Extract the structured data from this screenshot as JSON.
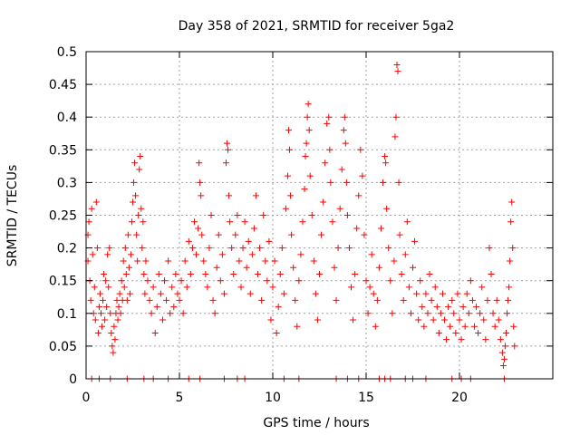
{
  "chart_data": {
    "type": "scatter",
    "title": "Day 358 of 2021, SRMTID for receiver 5ga2",
    "xlabel": "GPS time / hours",
    "ylabel": "SRMTID / TECUs",
    "xlim": [
      0,
      25
    ],
    "ylim": [
      0,
      0.5
    ],
    "xticks": [
      0,
      5,
      10,
      15,
      20
    ],
    "yticks": [
      0,
      0.05,
      0.1,
      0.15,
      0.2,
      0.25,
      0.3,
      0.35,
      0.4,
      0.45,
      0.5
    ],
    "ytick_labels": [
      "0",
      "0.05",
      "0.1",
      "0.15",
      "0.2",
      "0.25",
      "0.3",
      "0.35",
      "0.4",
      "0.45",
      "0.5"
    ],
    "xtick_labels": [
      "0",
      "5",
      "10",
      "15",
      "20"
    ],
    "grid": true,
    "marker": "+",
    "series": [
      {
        "name": "SRMTID",
        "color": "#ff0000",
        "points": [
          [
            0.1,
            0.18
          ],
          [
            0.1,
            0.22
          ],
          [
            0.15,
            0.24
          ],
          [
            0.2,
            0.15
          ],
          [
            0.25,
            0.12
          ],
          [
            0.3,
            0.26
          ],
          [
            0.35,
            0.19
          ],
          [
            0.4,
            0.1
          ],
          [
            0.45,
            0.14
          ],
          [
            0.5,
            0.09
          ],
          [
            0.55,
            0.27
          ],
          [
            0.6,
            0.2
          ],
          [
            0.65,
            0.07
          ],
          [
            0.7,
            0.11
          ],
          [
            0.75,
            0.13
          ],
          [
            0.8,
            0.1
          ],
          [
            0.85,
            0.08
          ],
          [
            0.9,
            0.12
          ],
          [
            0.95,
            0.16
          ],
          [
            1.0,
            0.09
          ],
          [
            1.05,
            0.15
          ],
          [
            1.1,
            0.11
          ],
          [
            1.15,
            0.19
          ],
          [
            1.2,
            0.14
          ],
          [
            1.25,
            0.2
          ],
          [
            1.3,
            0.1
          ],
          [
            1.35,
            0.07
          ],
          [
            1.4,
            0.05
          ],
          [
            1.45,
            0.04
          ],
          [
            1.5,
            0.08
          ],
          [
            1.55,
            0.06
          ],
          [
            1.6,
            0.1
          ],
          [
            1.65,
            0.12
          ],
          [
            1.7,
            0.09
          ],
          [
            1.75,
            0.11
          ],
          [
            1.8,
            0.13
          ],
          [
            1.85,
            0.1
          ],
          [
            1.9,
            0.15
          ],
          [
            1.95,
            0.12
          ],
          [
            2.0,
            0.18
          ],
          [
            2.05,
            0.14
          ],
          [
            2.1,
            0.2
          ],
          [
            2.15,
            0.16
          ],
          [
            2.2,
            0.12
          ],
          [
            2.25,
            0.22
          ],
          [
            2.3,
            0.17
          ],
          [
            2.35,
            0.13
          ],
          [
            2.4,
            0.19
          ],
          [
            2.45,
            0.24
          ],
          [
            2.5,
            0.27
          ],
          [
            2.55,
            0.3
          ],
          [
            2.6,
            0.33
          ],
          [
            2.65,
            0.28
          ],
          [
            2.7,
            0.22
          ],
          [
            2.75,
            0.18
          ],
          [
            2.8,
            0.25
          ],
          [
            2.85,
            0.32
          ],
          [
            2.9,
            0.34
          ],
          [
            2.95,
            0.26
          ],
          [
            3.0,
            0.2
          ],
          [
            3.05,
            0.24
          ],
          [
            3.1,
            0.16
          ],
          [
            3.15,
            0.13
          ],
          [
            3.2,
            0.18
          ],
          [
            3.3,
            0.15
          ],
          [
            3.4,
            0.12
          ],
          [
            3.5,
            0.1
          ],
          [
            3.6,
            0.14
          ],
          [
            3.7,
            0.07
          ],
          [
            3.8,
            0.11
          ],
          [
            3.9,
            0.16
          ],
          [
            4.0,
            0.13
          ],
          [
            4.1,
            0.09
          ],
          [
            4.2,
            0.15
          ],
          [
            4.3,
            0.12
          ],
          [
            4.4,
            0.18
          ],
          [
            4.5,
            0.1
          ],
          [
            4.6,
            0.14
          ],
          [
            4.7,
            0.11
          ],
          [
            4.8,
            0.16
          ],
          [
            4.9,
            0.13
          ],
          [
            5.0,
            0.12
          ],
          [
            5.1,
            0.15
          ],
          [
            5.2,
            0.1
          ],
          [
            5.3,
            0.18
          ],
          [
            5.4,
            0.14
          ],
          [
            5.5,
            0.21
          ],
          [
            5.6,
            0.16
          ],
          [
            5.7,
            0.2
          ],
          [
            5.8,
            0.24
          ],
          [
            5.9,
            0.19
          ],
          [
            6.0,
            0.23
          ],
          [
            6.05,
            0.33
          ],
          [
            6.1,
            0.3
          ],
          [
            6.15,
            0.28
          ],
          [
            6.2,
            0.22
          ],
          [
            6.3,
            0.18
          ],
          [
            6.4,
            0.16
          ],
          [
            6.5,
            0.14
          ],
          [
            6.6,
            0.2
          ],
          [
            6.7,
            0.25
          ],
          [
            6.8,
            0.12
          ],
          [
            6.9,
            0.1
          ],
          [
            7.0,
            0.17
          ],
          [
            7.1,
            0.22
          ],
          [
            7.2,
            0.15
          ],
          [
            7.3,
            0.19
          ],
          [
            7.4,
            0.13
          ],
          [
            7.5,
            0.33
          ],
          [
            7.55,
            0.36
          ],
          [
            7.6,
            0.35
          ],
          [
            7.65,
            0.28
          ],
          [
            7.7,
            0.24
          ],
          [
            7.8,
            0.2
          ],
          [
            7.9,
            0.16
          ],
          [
            8.0,
            0.22
          ],
          [
            8.1,
            0.25
          ],
          [
            8.2,
            0.18
          ],
          [
            8.3,
            0.14
          ],
          [
            8.4,
            0.2
          ],
          [
            8.5,
            0.24
          ],
          [
            8.6,
            0.17
          ],
          [
            8.7,
            0.21
          ],
          [
            8.8,
            0.13
          ],
          [
            8.9,
            0.19
          ],
          [
            9.0,
            0.23
          ],
          [
            9.1,
            0.28
          ],
          [
            9.2,
            0.16
          ],
          [
            9.3,
            0.2
          ],
          [
            9.4,
            0.12
          ],
          [
            9.5,
            0.25
          ],
          [
            9.6,
            0.18
          ],
          [
            9.7,
            0.15
          ],
          [
            9.8,
            0.21
          ],
          [
            9.9,
            0.09
          ],
          [
            10.0,
            0.14
          ],
          [
            10.1,
            0.18
          ],
          [
            10.2,
            0.07
          ],
          [
            10.3,
            0.11
          ],
          [
            10.4,
            0.16
          ],
          [
            10.5,
            0.2
          ],
          [
            10.6,
            0.13
          ],
          [
            10.7,
            0.26
          ],
          [
            10.8,
            0.31
          ],
          [
            10.85,
            0.38
          ],
          [
            10.9,
            0.35
          ],
          [
            10.95,
            0.28
          ],
          [
            11.0,
            0.22
          ],
          [
            11.1,
            0.17
          ],
          [
            11.2,
            0.12
          ],
          [
            11.3,
            0.08
          ],
          [
            11.4,
            0.15
          ],
          [
            11.5,
            0.19
          ],
          [
            11.6,
            0.24
          ],
          [
            11.7,
            0.29
          ],
          [
            11.75,
            0.34
          ],
          [
            11.8,
            0.36
          ],
          [
            11.85,
            0.4
          ],
          [
            11.9,
            0.42
          ],
          [
            11.95,
            0.38
          ],
          [
            12.0,
            0.31
          ],
          [
            12.1,
            0.25
          ],
          [
            12.2,
            0.18
          ],
          [
            12.3,
            0.13
          ],
          [
            12.4,
            0.09
          ],
          [
            12.5,
            0.16
          ],
          [
            12.6,
            0.22
          ],
          [
            12.7,
            0.27
          ],
          [
            12.8,
            0.33
          ],
          [
            12.9,
            0.39
          ],
          [
            13.0,
            0.4
          ],
          [
            13.05,
            0.35
          ],
          [
            13.1,
            0.3
          ],
          [
            13.2,
            0.24
          ],
          [
            13.3,
            0.17
          ],
          [
            13.4,
            0.12
          ],
          [
            13.5,
            0.2
          ],
          [
            13.6,
            0.26
          ],
          [
            13.7,
            0.32
          ],
          [
            13.8,
            0.38
          ],
          [
            13.85,
            0.4
          ],
          [
            13.9,
            0.36
          ],
          [
            13.95,
            0.3
          ],
          [
            14.0,
            0.25
          ],
          [
            14.1,
            0.2
          ],
          [
            14.2,
            0.14
          ],
          [
            14.3,
            0.09
          ],
          [
            14.4,
            0.16
          ],
          [
            14.5,
            0.23
          ],
          [
            14.6,
            0.28
          ],
          [
            14.7,
            0.35
          ],
          [
            14.8,
            0.31
          ],
          [
            14.9,
            0.22
          ],
          [
            15.0,
            0.15
          ],
          [
            15.1,
            0.1
          ],
          [
            15.2,
            0.14
          ],
          [
            15.3,
            0.19
          ],
          [
            15.4,
            0.13
          ],
          [
            15.5,
            0.08
          ],
          [
            15.6,
            0.12
          ],
          [
            15.7,
            0.17
          ],
          [
            15.8,
            0.23
          ],
          [
            15.9,
            0.3
          ],
          [
            16.0,
            0.34
          ],
          [
            16.05,
            0.33
          ],
          [
            16.1,
            0.26
          ],
          [
            16.2,
            0.2
          ],
          [
            16.3,
            0.15
          ],
          [
            16.4,
            0.1
          ],
          [
            16.5,
            0.18
          ],
          [
            16.55,
            0.37
          ],
          [
            16.6,
            0.4
          ],
          [
            16.65,
            0.48
          ],
          [
            16.7,
            0.47
          ],
          [
            16.75,
            0.3
          ],
          [
            16.8,
            0.22
          ],
          [
            16.9,
            0.16
          ],
          [
            17.0,
            0.12
          ],
          [
            17.1,
            0.19
          ],
          [
            17.2,
            0.24
          ],
          [
            17.3,
            0.14
          ],
          [
            17.4,
            0.1
          ],
          [
            17.5,
            0.17
          ],
          [
            17.6,
            0.21
          ],
          [
            17.7,
            0.13
          ],
          [
            17.8,
            0.09
          ],
          [
            17.9,
            0.15
          ],
          [
            18.0,
            0.11
          ],
          [
            18.1,
            0.08
          ],
          [
            18.2,
            0.13
          ],
          [
            18.3,
            0.1
          ],
          [
            18.4,
            0.16
          ],
          [
            18.5,
            0.12
          ],
          [
            18.6,
            0.09
          ],
          [
            18.7,
            0.14
          ],
          [
            18.8,
            0.11
          ],
          [
            18.9,
            0.07
          ],
          [
            19.0,
            0.1
          ],
          [
            19.1,
            0.13
          ],
          [
            19.2,
            0.09
          ],
          [
            19.3,
            0.06
          ],
          [
            19.4,
            0.11
          ],
          [
            19.5,
            0.08
          ],
          [
            19.6,
            0.12
          ],
          [
            19.7,
            0.1
          ],
          [
            19.8,
            0.07
          ],
          [
            19.9,
            0.13
          ],
          [
            20.0,
            0.09
          ],
          [
            20.1,
            0.06
          ],
          [
            20.2,
            0.11
          ],
          [
            20.3,
            0.08
          ],
          [
            20.4,
            0.13
          ],
          [
            20.5,
            0.1
          ],
          [
            20.6,
            0.15
          ],
          [
            20.7,
            0.12
          ],
          [
            20.8,
            0.08
          ],
          [
            20.9,
            0.11
          ],
          [
            21.0,
            0.07
          ],
          [
            21.1,
            0.1
          ],
          [
            21.2,
            0.14
          ],
          [
            21.3,
            0.09
          ],
          [
            21.4,
            0.06
          ],
          [
            21.5,
            0.12
          ],
          [
            21.6,
            0.2
          ],
          [
            21.7,
            0.16
          ],
          [
            21.8,
            0.1
          ],
          [
            21.9,
            0.08
          ],
          [
            22.0,
            0.12
          ],
          [
            22.1,
            0.09
          ],
          [
            22.2,
            0.06
          ],
          [
            22.3,
            0.04
          ],
          [
            22.35,
            0.02
          ],
          [
            22.4,
            0.03
          ],
          [
            22.45,
            0.05
          ],
          [
            22.5,
            0.07
          ],
          [
            22.55,
            0.1
          ],
          [
            22.6,
            0.12
          ],
          [
            22.65,
            0.14
          ],
          [
            22.7,
            0.18
          ],
          [
            22.75,
            0.24
          ],
          [
            22.8,
            0.27
          ],
          [
            22.85,
            0.2
          ],
          [
            22.9,
            0.08
          ],
          [
            22.95,
            0.05
          ],
          [
            0.3,
            0.0
          ],
          [
            0.7,
            0.0
          ],
          [
            1.3,
            0.0
          ],
          [
            2.2,
            0.0
          ],
          [
            3.1,
            0.0
          ],
          [
            3.6,
            0.0
          ],
          [
            4.4,
            0.0
          ],
          [
            5.5,
            0.0
          ],
          [
            6.1,
            0.0
          ],
          [
            7.4,
            0.0
          ],
          [
            8.1,
            0.0
          ],
          [
            8.5,
            0.0
          ],
          [
            10.6,
            0.0
          ],
          [
            11.4,
            0.0
          ],
          [
            13.4,
            0.0
          ],
          [
            14.0,
            0.0
          ],
          [
            14.6,
            0.0
          ],
          [
            15.7,
            0.0
          ],
          [
            16.0,
            0.0
          ],
          [
            16.3,
            0.0
          ],
          [
            17.1,
            0.0
          ],
          [
            17.5,
            0.0
          ],
          [
            18.2,
            0.0
          ],
          [
            19.6,
            0.0
          ],
          [
            20.1,
            0.0
          ],
          [
            20.6,
            0.0
          ],
          [
            22.4,
            0.0
          ]
        ]
      }
    ]
  }
}
